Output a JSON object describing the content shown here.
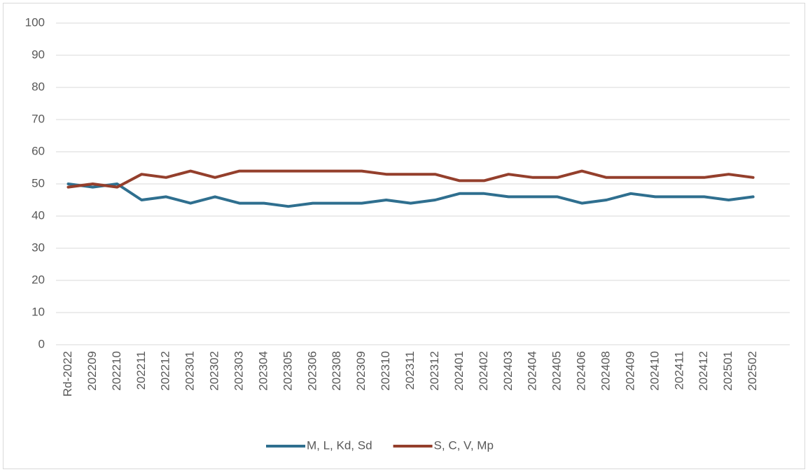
{
  "chart_data": {
    "type": "line",
    "categories": [
      "Rd-2022",
      "202209",
      "202210",
      "202211",
      "202212",
      "202301",
      "202302",
      "202303",
      "202304",
      "202305",
      "202306",
      "202308",
      "202309",
      "202310",
      "202311",
      "202312",
      "202401",
      "202402",
      "202403",
      "202404",
      "202405",
      "202406",
      "202408",
      "202409",
      "202410",
      "202411",
      "202412",
      "202501",
      "202502",
      null
    ],
    "series": [
      {
        "name": "M, L, Kd, Sd",
        "color": "#2f6f8f",
        "values": [
          50,
          49,
          50,
          45,
          46,
          44,
          46,
          44,
          44,
          43,
          44,
          44,
          44,
          45,
          44,
          45,
          47,
          47,
          46,
          46,
          46,
          44,
          45,
          47,
          46,
          46,
          46,
          45,
          46,
          null
        ]
      },
      {
        "name": "S, C, V, Mp",
        "color": "#943f2c",
        "values": [
          49,
          50,
          49,
          53,
          52,
          54,
          52,
          54,
          54,
          54,
          54,
          54,
          54,
          53,
          53,
          53,
          51,
          51,
          53,
          52,
          52,
          54,
          52,
          52,
          52,
          52,
          52,
          53,
          52,
          null
        ]
      }
    ],
    "ylim": [
      0,
      100
    ],
    "yticks": [
      0,
      10,
      20,
      30,
      40,
      50,
      60,
      70,
      80,
      90,
      100
    ],
    "grid": true,
    "legend": "bottom"
  }
}
